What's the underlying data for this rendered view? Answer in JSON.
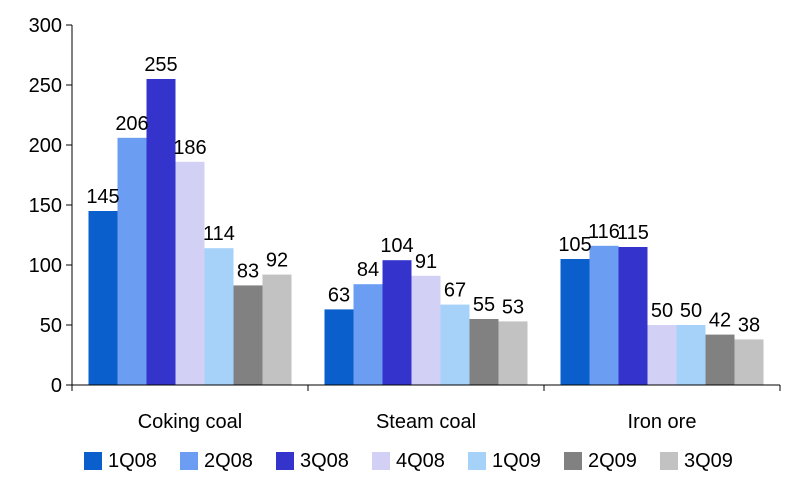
{
  "chart_data": {
    "type": "bar",
    "categories": [
      "Coking coal",
      "Steam coal",
      "Iron ore"
    ],
    "series": [
      {
        "name": "1Q08",
        "color": "#0A5FCC",
        "values": [
          145,
          63,
          105
        ]
      },
      {
        "name": "2Q08",
        "color": "#6B9DF2",
        "values": [
          206,
          84,
          116
        ]
      },
      {
        "name": "3Q08",
        "color": "#3434CC",
        "values": [
          255,
          104,
          115
        ]
      },
      {
        "name": "4Q08",
        "color": "#D3D0F5",
        "values": [
          186,
          91,
          50
        ]
      },
      {
        "name": "1Q09",
        "color": "#A6D2FA",
        "values": [
          114,
          67,
          50
        ]
      },
      {
        "name": "2Q09",
        "color": "#818181",
        "values": [
          83,
          55,
          42
        ]
      },
      {
        "name": "3Q09",
        "color": "#C2C2C2",
        "values": [
          92,
          53,
          38
        ]
      }
    ],
    "ylim": [
      0,
      300
    ],
    "yticks": [
      0,
      50,
      100,
      150,
      200,
      250,
      300
    ],
    "grid": false,
    "legend_position": "bottom"
  }
}
